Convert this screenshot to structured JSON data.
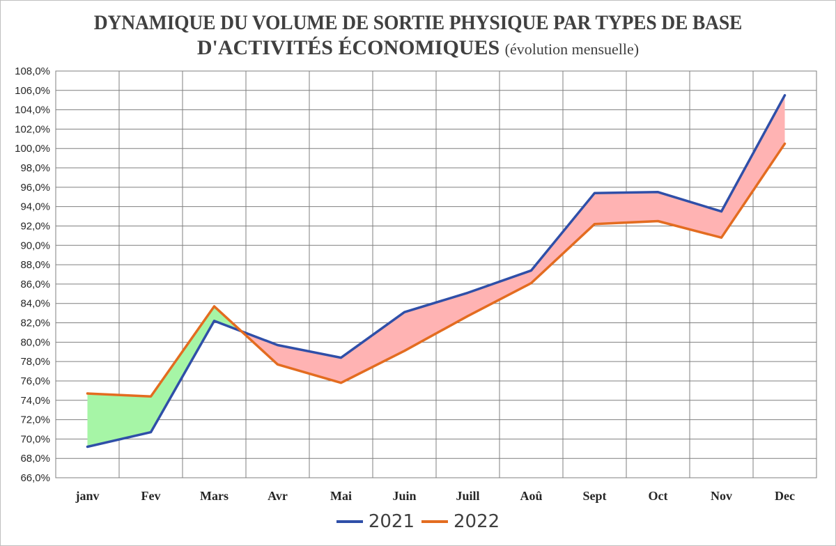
{
  "title_line1": "DYNAMIQUE DU VOLUME DE SORTIE PHYSIQUE PAR TYPES DE BASE",
  "title_line2": "D'ACTIVITÉS ÉCONOMIQUES",
  "subtitle": "(évolution mensuelle)",
  "colors": {
    "series_2021": "#2f4fa8",
    "series_2022": "#e36c20",
    "fill_2022_above": "#a6f5a6",
    "fill_2021_above": "#ffb3b3",
    "grid": "#7f7f7f"
  },
  "chart_data": {
    "type": "line",
    "categories": [
      "janv",
      "Fev",
      "Mars",
      "Avr",
      "Mai",
      "Juin",
      "Juill",
      "Aoû",
      "Sept",
      "Oct",
      "Nov",
      "Dec"
    ],
    "series": [
      {
        "name": "2021",
        "values": [
          69.2,
          70.7,
          82.2,
          79.7,
          78.4,
          83.1,
          85.1,
          87.4,
          95.4,
          95.5,
          93.5,
          105.5
        ]
      },
      {
        "name": "2022",
        "values": [
          74.7,
          74.4,
          83.7,
          77.7,
          75.8,
          79.1,
          82.7,
          86.1,
          92.2,
          92.5,
          90.8,
          100.5
        ]
      }
    ],
    "yticks": [
      "66,0%",
      "68,0%",
      "70,0%",
      "72,0%",
      "74,0%",
      "76,0%",
      "78,0%",
      "80,0%",
      "82,0%",
      "84,0%",
      "86,0%",
      "88,0%",
      "90,0%",
      "92,0%",
      "94,0%",
      "96,0%",
      "98,0%",
      "100,0%",
      "102,0%",
      "104,0%",
      "106,0%",
      "108,0%"
    ],
    "ylim": [
      66,
      108
    ],
    "grid": true,
    "legend_position": "bottom",
    "fill_between": "green where 2022 above 2021, red where 2021 above 2022"
  }
}
